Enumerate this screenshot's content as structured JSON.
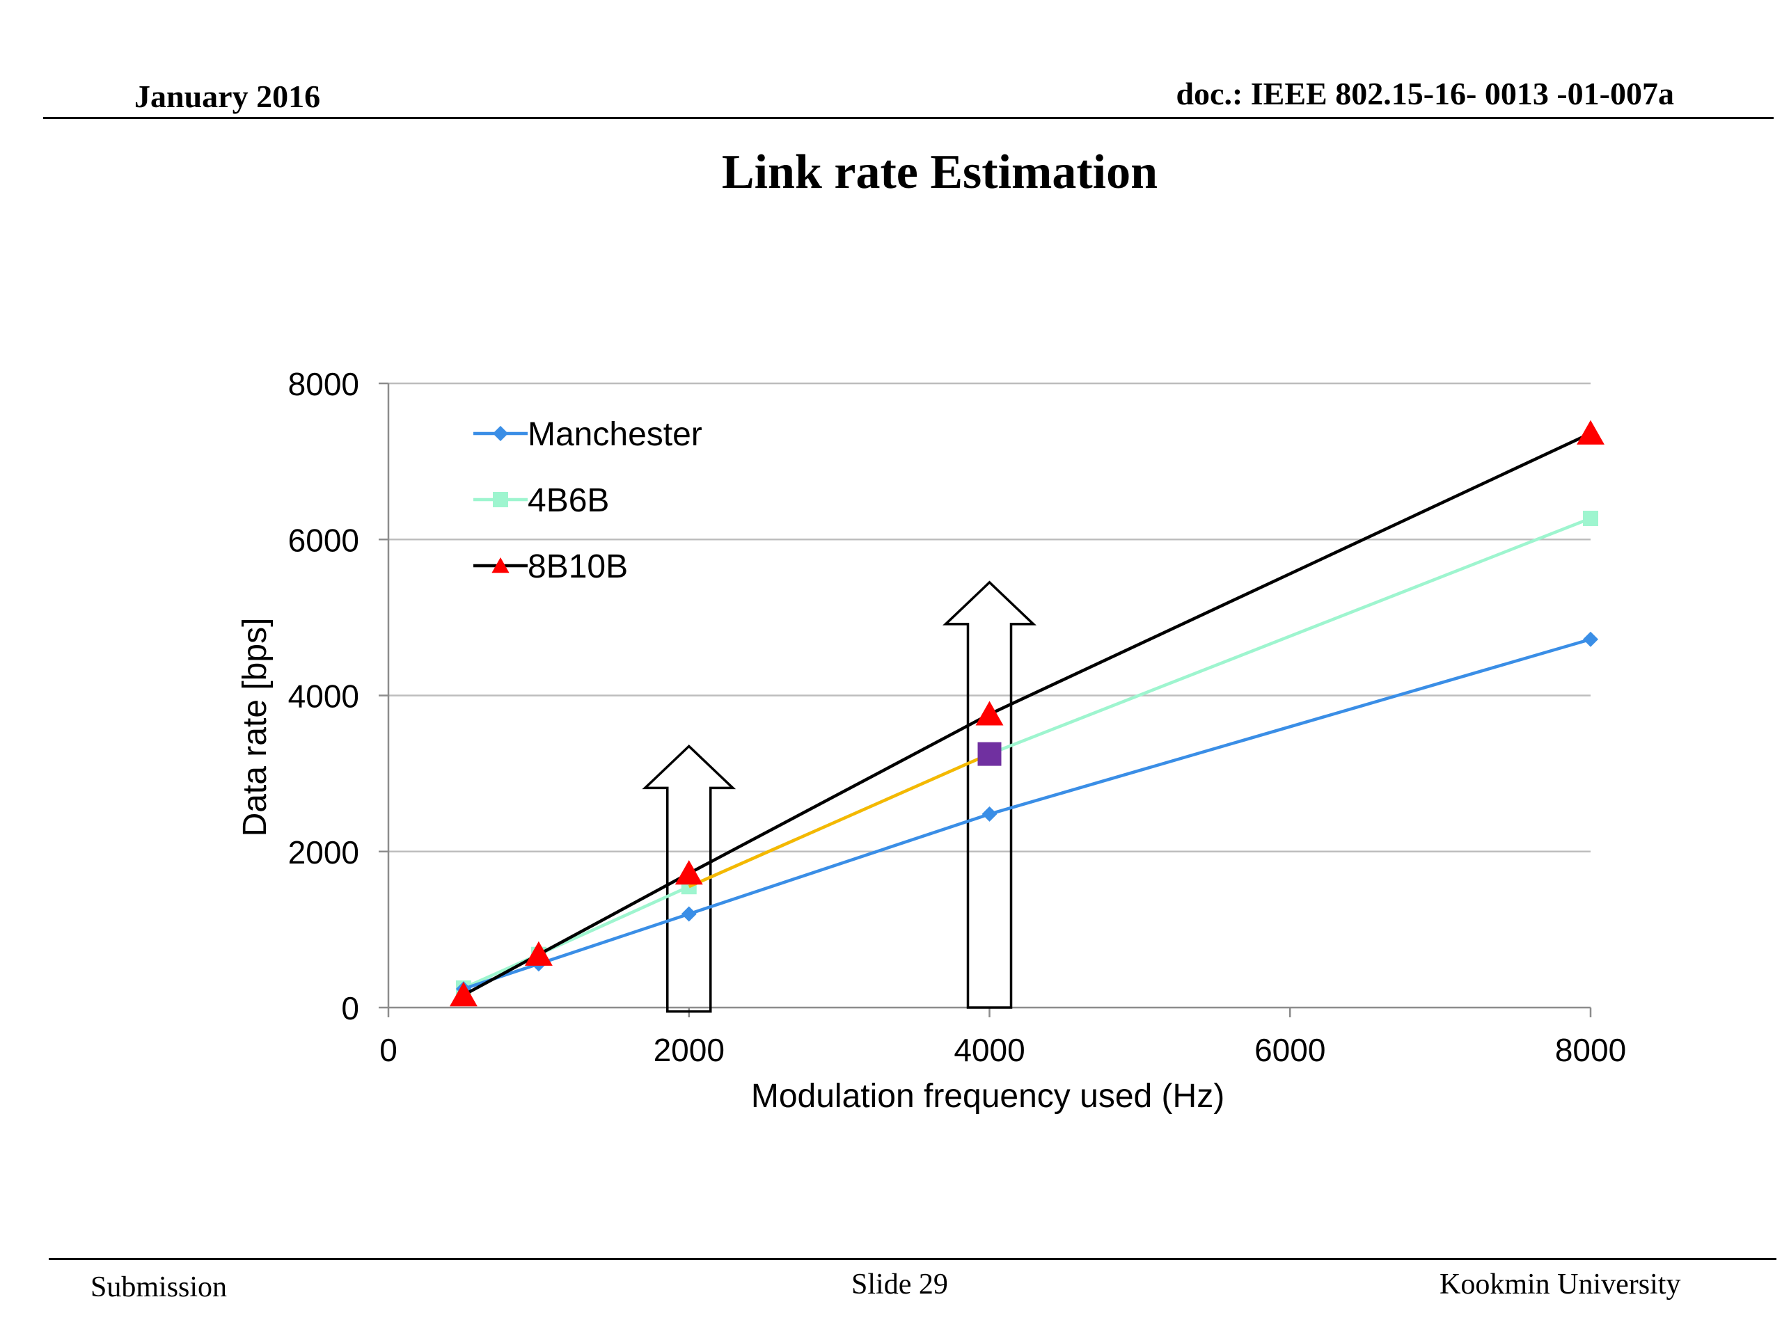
{
  "header": {
    "date": "January 2016",
    "doc": "doc.: IEEE 802.15-16- 0013 -01-007a"
  },
  "title": "Link rate Estimation",
  "footer": {
    "left": "Submission",
    "center": "Slide 29",
    "right": "Kookmin University"
  },
  "chart_data": {
    "type": "line",
    "xlabel": "Modulation frequency used (Hz)",
    "ylabel": "Data rate [bps]",
    "xlim": [
      0,
      8000
    ],
    "ylim": [
      0,
      8000
    ],
    "xticks": [
      0,
      2000,
      4000,
      6000,
      8000
    ],
    "yticks": [
      0,
      2000,
      4000,
      6000,
      8000
    ],
    "grid": "horizontal",
    "legend_position": "top-left",
    "series": [
      {
        "name": "Manchester",
        "color": "#3a8ee6",
        "marker": "diamond",
        "x": [
          500,
          1000,
          2000,
          4000,
          8000
        ],
        "y": [
          240,
          560,
          1200,
          2480,
          4720
        ]
      },
      {
        "name": "4B6B",
        "color": "#9ef5cf",
        "marker": "square",
        "x": [
          500,
          1000,
          2000,
          4000,
          8000
        ],
        "y": [
          250,
          680,
          1550,
          3250,
          6270
        ]
      },
      {
        "name": "8B10B",
        "color": "#000000",
        "marker": "triangle",
        "marker_color": "#ff0000",
        "x": [
          500,
          1000,
          2000,
          4000,
          8000
        ],
        "y": [
          160,
          680,
          1720,
          3760,
          7360
        ]
      }
    ],
    "annotations": [
      {
        "type": "segment",
        "color": "#f5b800",
        "x": [
          2000,
          4000
        ],
        "y": [
          1550,
          3250
        ]
      },
      {
        "type": "marker",
        "shape": "square",
        "color": "#7030a0",
        "x": 4000,
        "y": 3250
      },
      {
        "type": "arrow-up",
        "x": 2000,
        "from_y": -50,
        "to_y": 3350
      },
      {
        "type": "arrow-up",
        "x": 4000,
        "from_y": 0,
        "to_y": 5450
      }
    ]
  }
}
